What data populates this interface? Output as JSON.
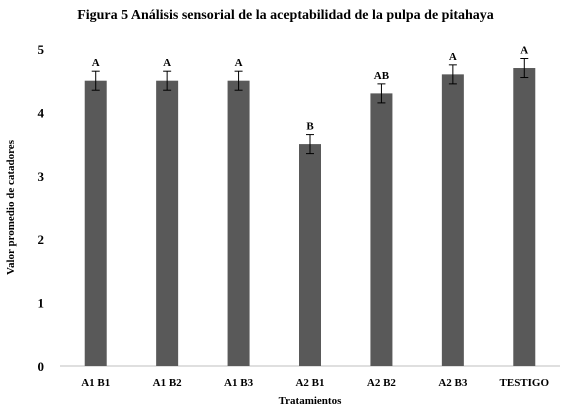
{
  "chart_data": {
    "type": "bar",
    "title": "Figura 5 Análisis sensorial de la aceptabilidad de la pulpa de pitahaya",
    "xlabel": "Tratamientos",
    "ylabel": "Valor promedio de catadores",
    "categories": [
      "A1 B1",
      "A1 B2",
      "A1 B3",
      "A2 B1",
      "A2 B2",
      "A2 B3",
      "TESTIGO"
    ],
    "values": [
      4.5,
      4.5,
      4.5,
      3.5,
      4.3,
      4.6,
      4.7
    ],
    "errors": [
      0.15,
      0.15,
      0.15,
      0.15,
      0.15,
      0.15,
      0.15
    ],
    "significance": [
      "A",
      "A",
      "A",
      "B",
      "AB",
      "A",
      "A"
    ],
    "ylim": [
      0,
      5
    ],
    "yticks": [
      0,
      1,
      2,
      3,
      4,
      5
    ],
    "grid": false,
    "legend": "none",
    "bar_color": "#595959"
  }
}
